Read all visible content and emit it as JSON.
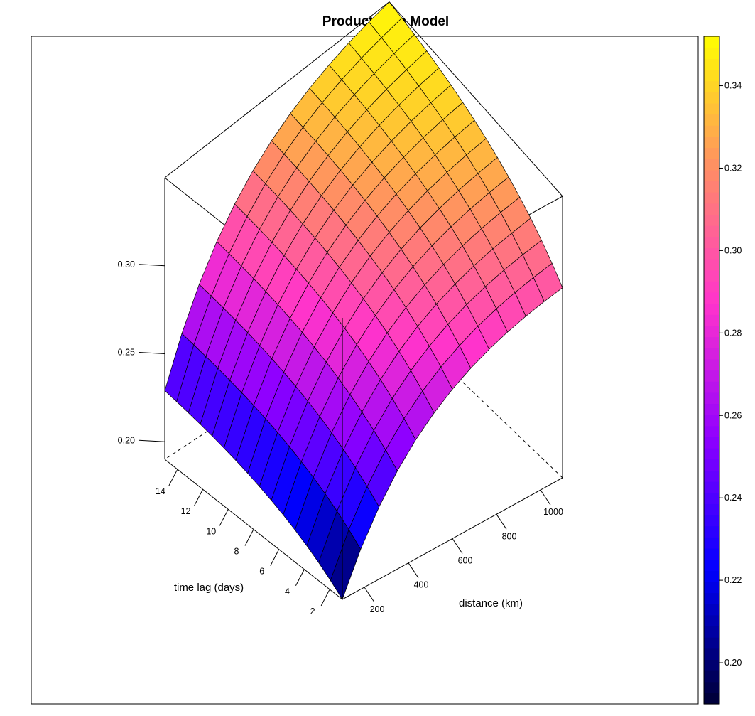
{
  "chart_data": {
    "type": "surface",
    "title": "Product Sum Model",
    "xlabel": "distance (km)",
    "ylabel": "time lag (days)",
    "zlabel": "",
    "x_ticks": [
      "200",
      "400",
      "600",
      "800",
      "1000"
    ],
    "y_ticks": [
      "2",
      "4",
      "6",
      "8",
      "10",
      "12",
      "14"
    ],
    "z_ticks": [
      "0.20",
      "0.25",
      "0.30"
    ],
    "xlim": [
      100,
      1100
    ],
    "ylim": [
      1,
      15
    ],
    "zlim": [
      0.19,
      0.35
    ],
    "grid": {
      "distance_steps": 12,
      "timelag_steps": 15
    },
    "corner_values": {
      "d100_t1": 0.19,
      "d1100_t1": 0.298,
      "d100_t15": 0.229,
      "d1100_t15": 0.35
    },
    "colorkey": {
      "ticks": [
        "0.20",
        "0.22",
        "0.24",
        "0.26",
        "0.28",
        "0.30",
        "0.32",
        "0.34"
      ],
      "range": [
        0.19,
        0.352
      ],
      "colors": [
        "#000033",
        "#0000ff",
        "#8f00ff",
        "#ff33cc",
        "#ff8c66",
        "#ffff00"
      ]
    }
  }
}
